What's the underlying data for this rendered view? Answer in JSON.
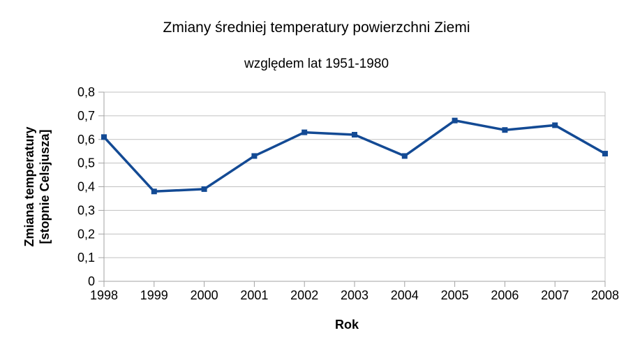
{
  "window": {
    "background_color": "#ffffff"
  },
  "chart_data": {
    "type": "line",
    "title": "Zmiany średniej temperatury powierzchni Ziemi",
    "subtitle": "względem lat 1951-1980",
    "xlabel": "Rok",
    "ylabel": "Zmiana temperatury [stopnie Celsjusza]",
    "ylabel_lines": [
      "Zmiana temperatury",
      "[stopnie Celsjusza]"
    ],
    "categories": [
      "1998",
      "1999",
      "2000",
      "2001",
      "2002",
      "2003",
      "2004",
      "2005",
      "2006",
      "2007",
      "2008"
    ],
    "values": [
      0.61,
      0.38,
      0.39,
      0.53,
      0.63,
      0.62,
      0.53,
      0.68,
      0.64,
      0.66,
      0.54
    ],
    "series_name": "Zmiana temperatury",
    "ylim": [
      0,
      0.8
    ],
    "y_tick_step": 0.1,
    "y_tick_labels": [
      "0",
      "0,1",
      "0,2",
      "0,3",
      "0,4",
      "0,5",
      "0,6",
      "0,7",
      "0,8"
    ],
    "decimal_separator": ",",
    "grid": true,
    "legend": "none",
    "marker": "square",
    "colors": {
      "series": "#134a94",
      "axis": "#a3a3a3",
      "grid": "#c0c0c0",
      "text": "#000000"
    }
  }
}
